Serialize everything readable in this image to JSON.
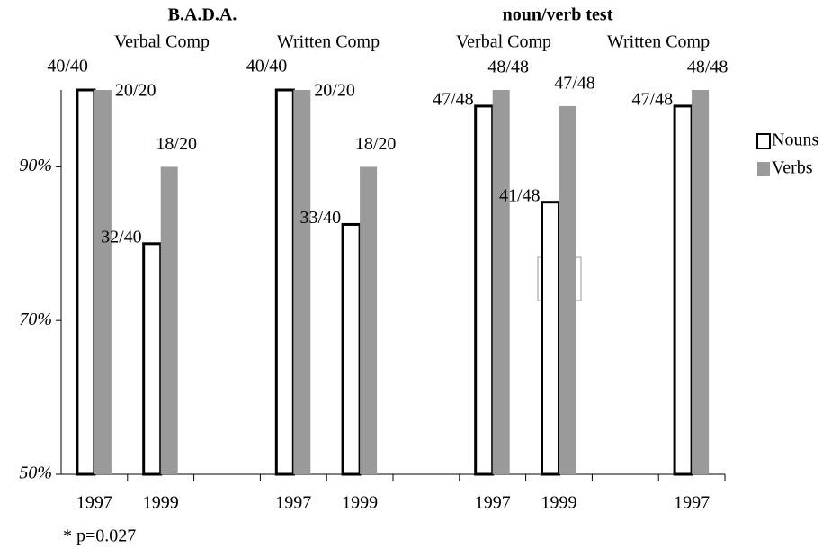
{
  "chart_data": {
    "type": "bar",
    "headings": [
      "B.A.D.A.",
      "noun/verb test"
    ],
    "subheadings": [
      "Verbal Comp",
      "Written Comp",
      "Verbal Comp",
      "Written Comp"
    ],
    "categories": [
      "1997",
      "1999",
      null,
      "1997",
      "1999",
      null,
      "1997",
      "1999",
      null,
      "1997"
    ],
    "series": [
      {
        "name": "Nouns",
        "color": "#ffffff",
        "values": [
          100,
          80,
          null,
          100,
          82.5,
          null,
          97.9,
          85.4,
          null,
          97.9
        ],
        "value_labels": [
          "40/40",
          "32/40",
          null,
          "40/40",
          "33/40",
          null,
          "47/48",
          "41/48",
          null,
          "47/48"
        ]
      },
      {
        "name": "Verbs",
        "color": "#9a9a9a",
        "values": [
          100,
          90,
          null,
          100,
          90,
          null,
          100,
          97.9,
          null,
          100
        ],
        "value_labels": [
          "20/20",
          "18/20",
          null,
          "20/20",
          "18/20",
          null,
          "48/48",
          "47/48",
          null,
          "48/48"
        ]
      }
    ],
    "ylim": [
      50,
      100
    ],
    "yticks": [
      {
        "value": 50,
        "label": "50%"
      },
      {
        "value": 70,
        "label": "70%"
      },
      {
        "value": 90,
        "label": "90%"
      }
    ],
    "significance_mark": "*",
    "footnote": "* p=0.027",
    "legend": "right"
  }
}
